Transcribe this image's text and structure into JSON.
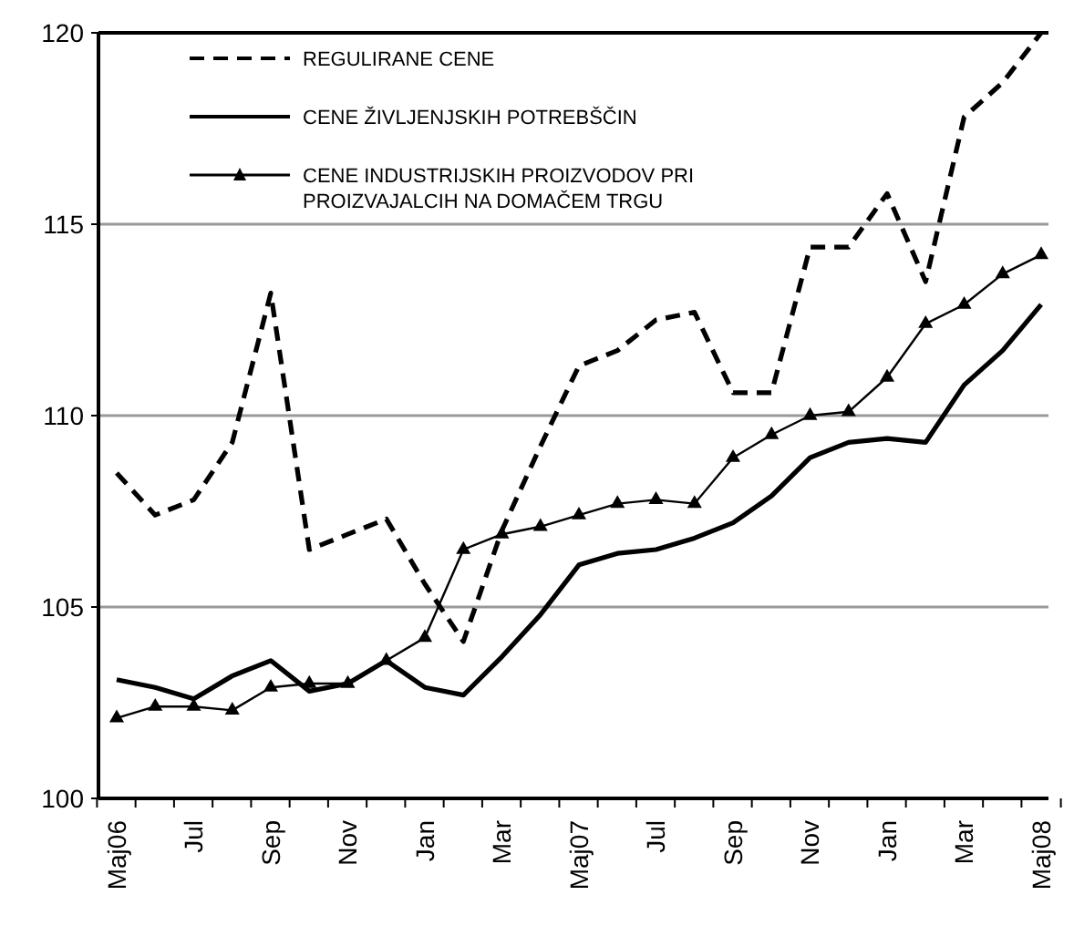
{
  "chart_data": {
    "type": "line",
    "categories": [
      "Maj06",
      null,
      "Jul",
      null,
      "Sep",
      null,
      "Nov",
      null,
      "Jan",
      null,
      "Mar",
      null,
      "Maj07",
      null,
      "Jul",
      null,
      "Sep",
      null,
      "Nov",
      null,
      "Jan",
      null,
      "Mar",
      null,
      "Maj08"
    ],
    "series": [
      {
        "name": "REGULIRANE CENE",
        "color": "#000000",
        "line_style": "dashed",
        "marker": "none",
        "values": [
          108.5,
          107.4,
          107.8,
          109.3,
          113.2,
          106.5,
          106.9,
          107.3,
          105.6,
          104.1,
          107.0,
          109.2,
          111.3,
          111.7,
          112.5,
          112.7,
          110.6,
          110.6,
          114.4,
          114.4,
          115.8,
          113.5,
          117.8,
          118.7,
          120
        ]
      },
      {
        "name": "CENE ŽIVLJENJSKIH POTREBŠČIN",
        "color": "#000000",
        "line_style": "solid",
        "marker": "none",
        "values": [
          103.1,
          102.9,
          102.6,
          103.2,
          103.6,
          102.8,
          103.0,
          103.6,
          102.9,
          102.7,
          103.7,
          104.8,
          106.1,
          106.4,
          106.5,
          106.8,
          107.2,
          107.9,
          108.9,
          109.3,
          109.4,
          109.3,
          110.8,
          111.7,
          112.9
        ]
      },
      {
        "name": "CENE INDUSTRIJSKIH PROIZVODOV PRI PROIZVAJALCIH NA DOMAČEM TRGU",
        "color": "#000000",
        "line_style": "solid",
        "marker": "triangle",
        "values": [
          102.1,
          102.4,
          102.4,
          102.3,
          102.9,
          103.0,
          103.0,
          103.6,
          104.2,
          106.5,
          106.9,
          107.1,
          107.4,
          107.7,
          107.8,
          107.7,
          108.9,
          109.5,
          110.0,
          110.1,
          111.0,
          112.4,
          112.9,
          113.7,
          114.2
        ]
      }
    ],
    "ylim": [
      100,
      120
    ],
    "yticks": [
      100,
      105,
      110,
      115,
      120
    ],
    "grid": "y",
    "legend": "top left"
  }
}
